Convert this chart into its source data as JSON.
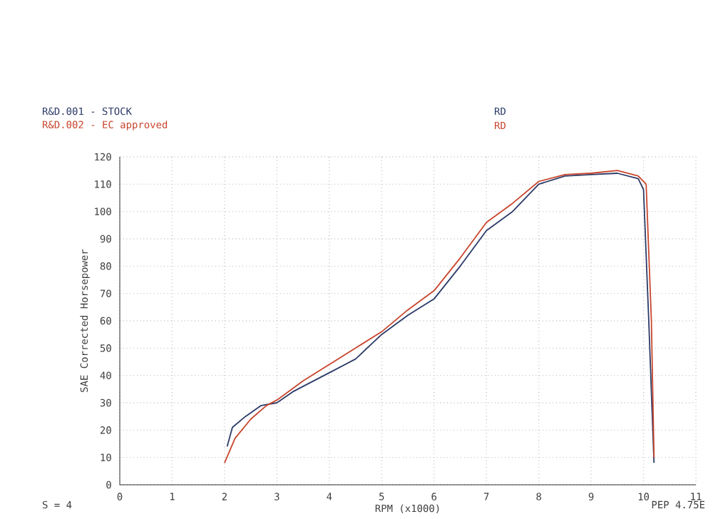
{
  "chart_data": {
    "type": "line",
    "xlabel": "RPM (x1000)",
    "ylabel": "SAE Corrected Horsepower",
    "xlim": [
      0,
      11
    ],
    "xticks": [
      0,
      1,
      2,
      3,
      4,
      5,
      6,
      7,
      8,
      9,
      10,
      11
    ],
    "ylim": [
      0,
      120
    ],
    "yticks": [
      0,
      10,
      20,
      30,
      40,
      50,
      60,
      70,
      80,
      90,
      100,
      110,
      120
    ],
    "grid": true,
    "line_style": "solid",
    "marker": "none",
    "series": [
      {
        "name": "R&D.001 - STOCK",
        "color": "#2b3a67",
        "x": [
          2.05,
          2.15,
          2.4,
          2.7,
          3.0,
          3.3,
          3.6,
          4.0,
          4.5,
          5.0,
          5.5,
          6.0,
          6.5,
          7.0,
          7.5,
          8.0,
          8.5,
          9.0,
          9.5,
          9.9,
          10.0,
          10.1,
          10.2
        ],
        "values": [
          14,
          21,
          25,
          29,
          30,
          34,
          37,
          41,
          46,
          55,
          62,
          68,
          80,
          93,
          100,
          110,
          113,
          113.5,
          114,
          112,
          108,
          60,
          8
        ]
      },
      {
        "name": "R&D.002 - EC approved",
        "color": "#c8452c",
        "x": [
          2.0,
          2.2,
          2.5,
          2.8,
          3.0,
          3.5,
          4.0,
          4.5,
          5.0,
          5.5,
          6.0,
          6.5,
          7.0,
          7.5,
          8.0,
          8.5,
          9.0,
          9.5,
          9.9,
          10.05,
          10.15,
          10.2
        ],
        "values": [
          8,
          17,
          24,
          29,
          31,
          38,
          44,
          50,
          56,
          64,
          71,
          83,
          96,
          103,
          111,
          113.5,
          114,
          115,
          113,
          110,
          60,
          10
        ]
      }
    ],
    "annotations": [
      "RD",
      "RD",
      "S = 4",
      "PEP 4.75E"
    ]
  }
}
